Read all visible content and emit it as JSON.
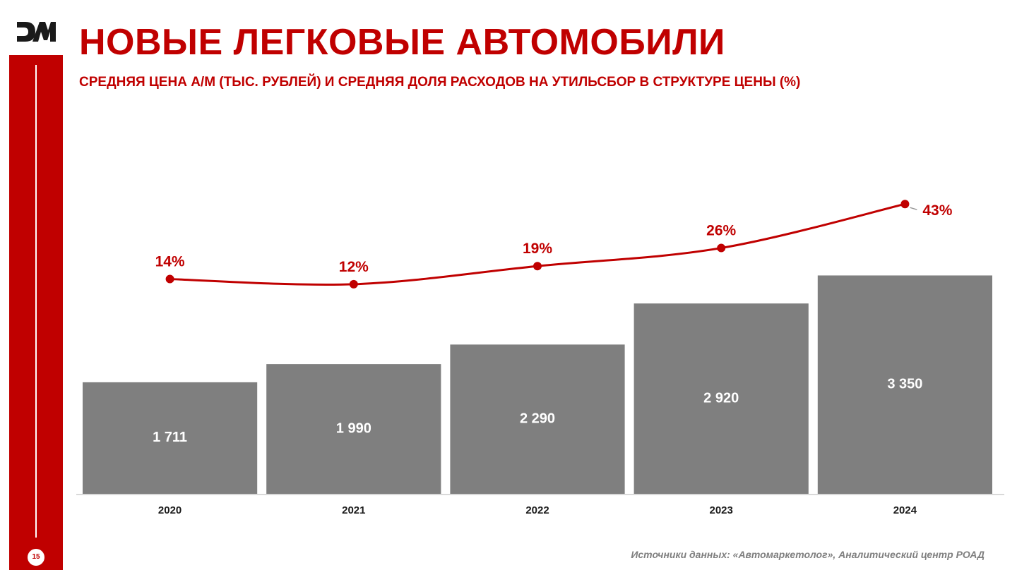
{
  "header": {
    "title": "НОВЫЕ ЛЕГКОВЫЕ АВТОМОБИЛИ",
    "subtitle": "СРЕДНЯЯ ЦЕНА А/М (ТЫС. РУБЛЕЙ) И СРЕДНЯЯ ДОЛЯ РАСХОДОВ НА УТИЛЬСБОР В СТРУКТУРЕ ЦЕНЫ (%)"
  },
  "sidebar": {
    "page_number": "15",
    "logo_icon": "dm-logo"
  },
  "footer": {
    "source": "Источники данных: «Автомаркетолог», Аналитический центр РОАД"
  },
  "colors": {
    "accent": "#c00000",
    "bar": "#7f7f7f",
    "axis": "#d9d9d9"
  },
  "chart_data": {
    "type": "bar",
    "categories": [
      "2020",
      "2021",
      "2022",
      "2023",
      "2024"
    ],
    "series": [
      {
        "type": "bar",
        "values": [
          1711,
          1990,
          2290,
          2920,
          3350
        ],
        "labels": [
          "1 711",
          "1 990",
          "2 290",
          "2 920",
          "3 350"
        ]
      },
      {
        "type": "line",
        "values": [
          14,
          12,
          19,
          26,
          43
        ],
        "labels": [
          "14%",
          "12%",
          "19%",
          "26%",
          "43%"
        ]
      }
    ],
    "grid": false,
    "legend": "none"
  }
}
